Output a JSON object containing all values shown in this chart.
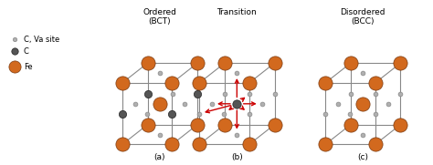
{
  "background_color": "#ffffff",
  "fe_color": "#D2691E",
  "fe_edge_color": "#7B3A10",
  "c_color": "#555555",
  "c_edge_color": "#222222",
  "va_color": "#b0b0b0",
  "va_edge_color": "#888888",
  "line_color": "#888888",
  "arrow_color": "#cc0000",
  "fe_size": 120,
  "c_size": 35,
  "va_size": 12,
  "panels": [
    {
      "title": "Ordered\n(BCT)",
      "label": "(a)"
    },
    {
      "title": "Transition",
      "label": "(b)"
    },
    {
      "title": "Disordered\n(BCC)",
      "label": "(c)"
    }
  ],
  "legend": {
    "fe": {
      "label": "Fe",
      "color": "#D2691E",
      "edge": "#7B3A10",
      "size": 120
    },
    "c": {
      "label": "C",
      "color": "#555555",
      "edge": "#222222",
      "size": 35
    },
    "va": {
      "label": "C, Va site",
      "color": "#b0b0b0",
      "edge": "#888888",
      "size": 12
    }
  }
}
